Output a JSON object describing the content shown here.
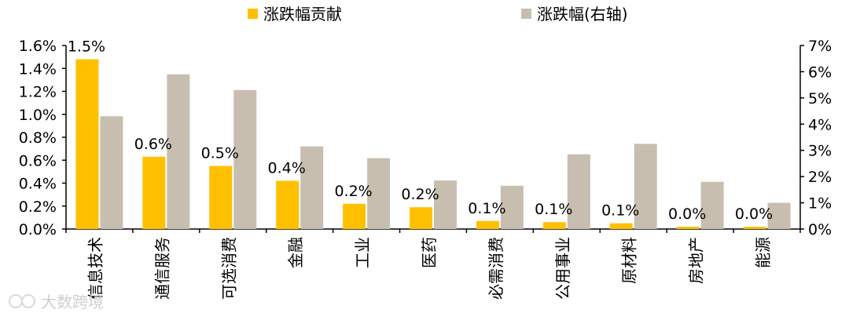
{
  "chart_data": {
    "type": "bar",
    "categories": [
      "信息技术",
      "通信服务",
      "可选消费",
      "金融",
      "工业",
      "医药",
      "必需消费",
      "公用事业",
      "原材料",
      "房地产",
      "能源"
    ],
    "series": [
      {
        "name": "涨跌幅贡献",
        "axis": "left",
        "color": "#FFC000",
        "values": [
          1.48,
          0.63,
          0.55,
          0.42,
          0.22,
          0.19,
          0.07,
          0.06,
          0.05,
          0.02,
          0.02
        ],
        "labels": [
          "1.5%",
          "0.6%",
          "0.5%",
          "0.4%",
          "0.2%",
          "0.2%",
          "0.1%",
          "0.1%",
          "0.1%",
          "0.0%",
          "0.0%"
        ]
      },
      {
        "name": "涨跌幅(右轴)",
        "axis": "right",
        "color": "#C7BEAF",
        "values": [
          4.3,
          5.9,
          5.3,
          3.15,
          2.7,
          1.85,
          1.65,
          2.85,
          3.25,
          1.8,
          1.0
        ]
      }
    ],
    "y_left": {
      "ylim": [
        0,
        1.6
      ],
      "ticks": [
        "0.0%",
        "0.2%",
        "0.4%",
        "0.6%",
        "0.8%",
        "1.0%",
        "1.2%",
        "1.4%",
        "1.6%"
      ]
    },
    "y_right": {
      "ylim": [
        0,
        7
      ],
      "ticks": [
        "0%",
        "1%",
        "2%",
        "3%",
        "4%",
        "5%",
        "6%",
        "7%"
      ]
    },
    "legend_position": "top-center",
    "grid": false
  },
  "watermark": {
    "text": "大数跨境",
    "icon": "logo-icon"
  }
}
